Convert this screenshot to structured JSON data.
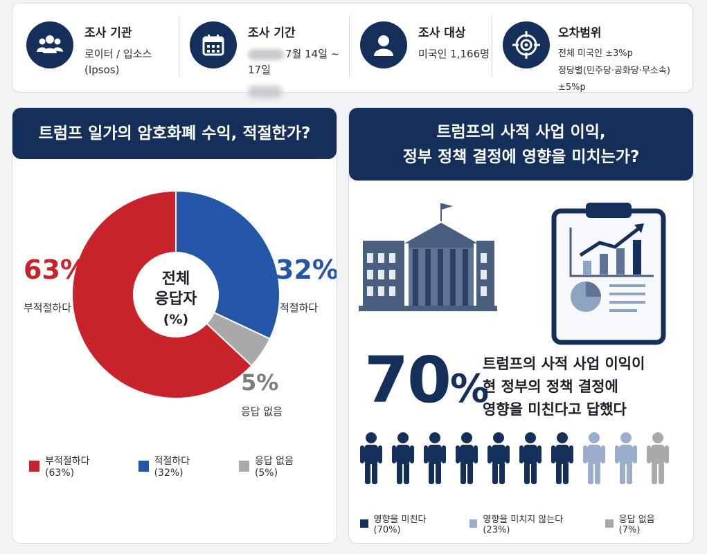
{
  "info": [
    {
      "icon": "group-people-icon",
      "title": "조사 기관",
      "lines": [
        "로이터 / 입소스",
        "(Ipsos)"
      ]
    },
    {
      "icon": "calendar-icon",
      "title": "조사 기간",
      "lines": [
        "7월 14일 ~ 17일"
      ]
    },
    {
      "icon": "person-icon",
      "title": "조사 대상",
      "lines": [
        "미국인 1,166명"
      ]
    },
    {
      "icon": "target-crosshair-icon",
      "title": "오차범위",
      "lines": [
        "전체 미국인 ±3%p",
        "정당별(민주당·공화당·무소속) ±5%p"
      ]
    }
  ],
  "left": {
    "title": "트럼프 일가의 암호화폐 수익, 적절한가?",
    "center_label": [
      "전체",
      "응답자",
      "(%)"
    ],
    "labels": {
      "inappropriate": {
        "pct": "63%",
        "text": "부적절하다"
      },
      "appropriate": {
        "pct": "32%",
        "text": "적절하다"
      },
      "no_answer": {
        "pct": "5%",
        "text": "응답 없음"
      }
    },
    "legend": [
      "부적절하다 (63%)",
      "적절하다 (32%)",
      "응답 없음 (5%)"
    ]
  },
  "right": {
    "title_line1": "트럼프의 사적 사업 이익,",
    "title_line2": "정부 정책 결정에 영향을 미치는가?",
    "big_value": "70",
    "big_unit": "%",
    "desc": [
      "트럼프의 사적 사업 이익이",
      "현 정부의 정책 결정에",
      "영향을 미친다고 답했다"
    ],
    "legend": [
      "영향을 미친다 (70%)",
      "영향을 미치지 않는다 (23%)",
      "응답 없음 (7%)"
    ],
    "icons": [
      "government-building-icon",
      "clipboard-chart-icon",
      "person-figures-icon"
    ]
  },
  "chart_data": [
    {
      "type": "pie",
      "title": "트럼프 일가의 암호화폐 수익, 적절한가?",
      "categories": [
        "부적절하다",
        "적절하다",
        "응답 없음"
      ],
      "values": [
        63,
        32,
        5
      ],
      "colors": [
        "#c8232b",
        "#2456a8",
        "#a9a9a9"
      ],
      "legend_position": "bottom"
    },
    {
      "type": "bar",
      "title": "트럼프의 사적 사업 이익, 정부 정책 결정에 영향을 미치는가?",
      "categories": [
        "영향을 미친다",
        "영향을 미치지 않는다",
        "응답 없음"
      ],
      "values": [
        70,
        23,
        7
      ],
      "colors": [
        "#14305a",
        "#9aaecb",
        "#a9a9a9"
      ],
      "legend_position": "bottom"
    }
  ]
}
